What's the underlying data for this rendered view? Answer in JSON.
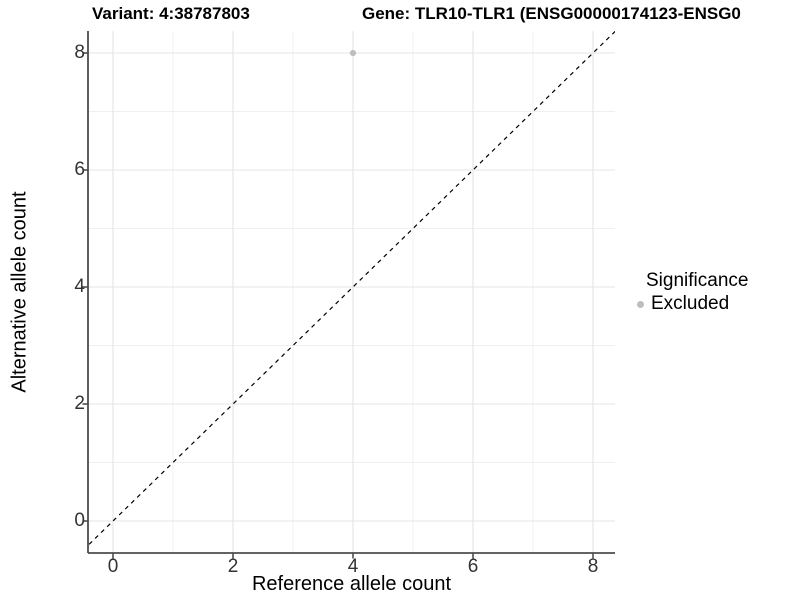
{
  "chart_data": {
    "type": "scatter",
    "title_left": "Variant: 4:38787803",
    "title_right": "Gene: TLR10-TLR1 (ENSG00000174123-ENSG0",
    "xlabel": "Reference allele count",
    "ylabel": "Alternative allele count",
    "xlim": [
      -0.4,
      8.4
    ],
    "ylim": [
      -0.55,
      8.4
    ],
    "x_ticks": [
      0,
      2,
      4,
      6,
      8
    ],
    "y_ticks": [
      0,
      2,
      4,
      6,
      8
    ],
    "x_minor_ticks": [
      1,
      3,
      5,
      7
    ],
    "y_minor_ticks": [
      1,
      3,
      5,
      7
    ],
    "grid": "major and minor, light gray on white",
    "points": [
      {
        "x": 4,
        "y": 8,
        "series": "Excluded"
      }
    ],
    "reference_line": {
      "kind": "identity y=x",
      "style": "dashed",
      "color": "#000000"
    },
    "legend": {
      "position": "right",
      "title": "Significance",
      "items": [
        {
          "label": "Excluded",
          "color": "#bebebe",
          "marker": "circle"
        }
      ]
    }
  },
  "colors": {
    "point": "#bebebe",
    "grid_major": "#e4e4e4",
    "grid_minor": "#f0f0f0",
    "axis_line": "#4d4d4d",
    "axis_text": "#333333",
    "background": "#ffffff"
  }
}
